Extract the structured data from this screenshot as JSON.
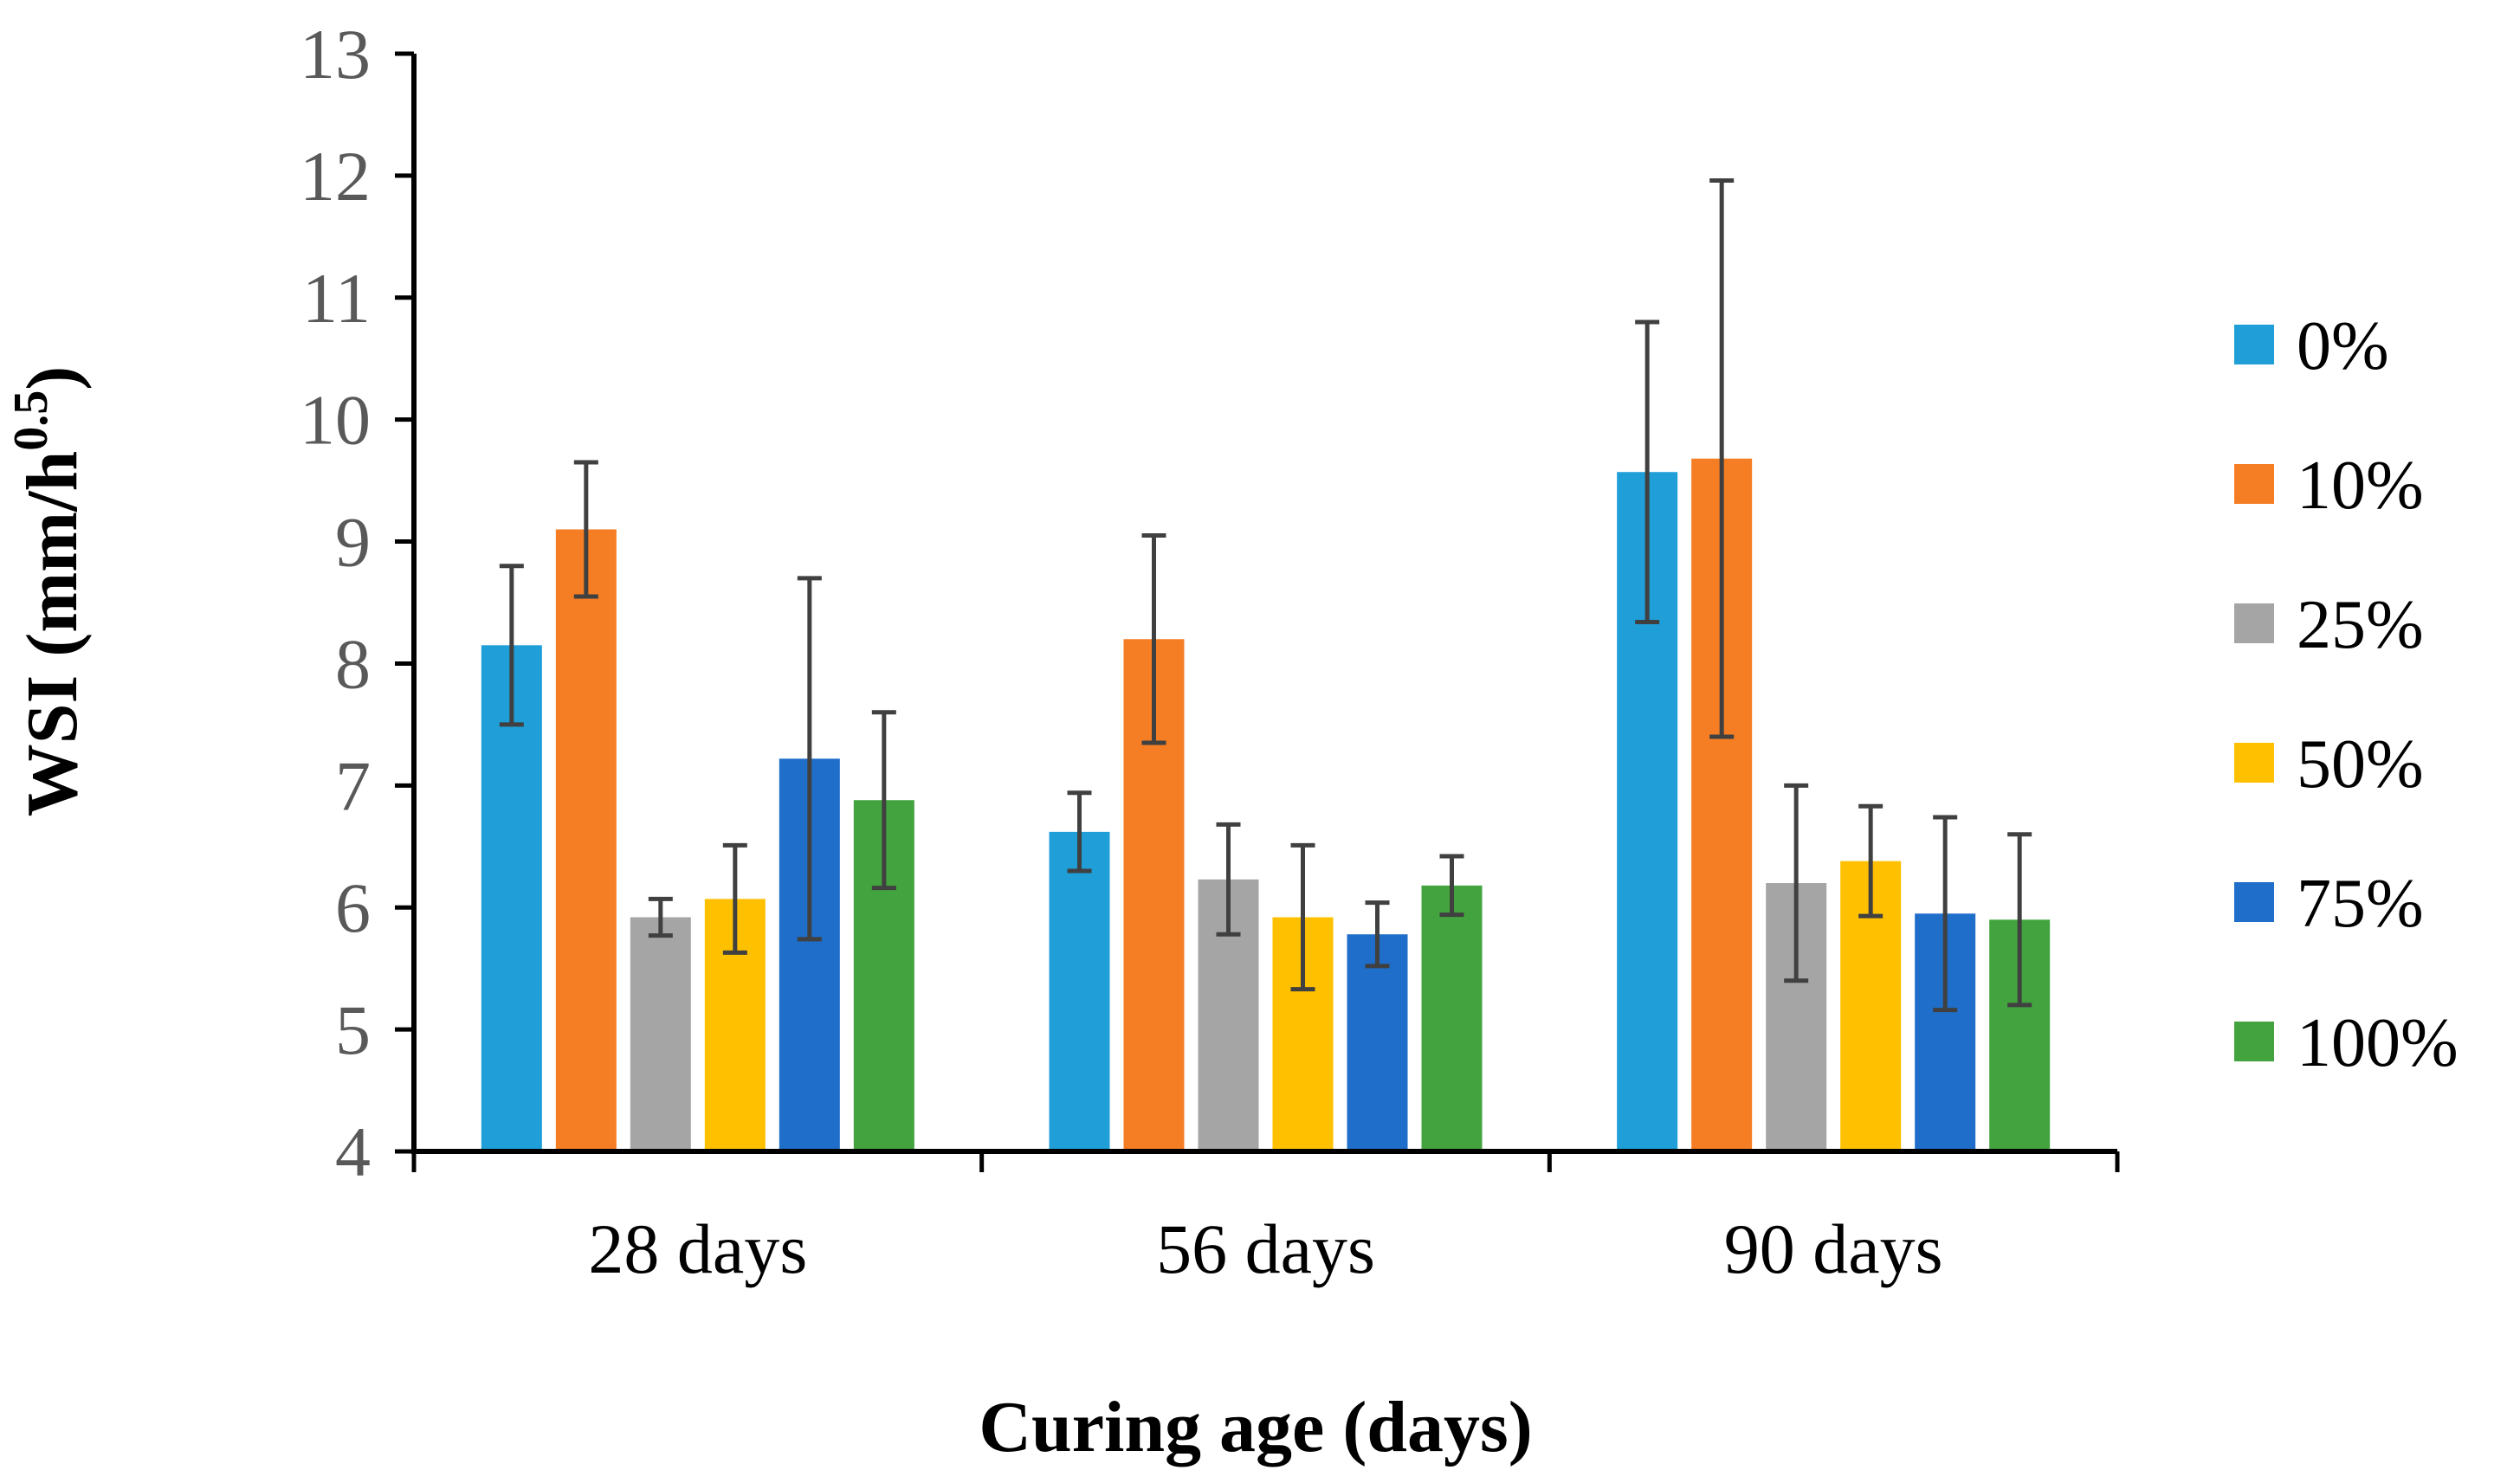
{
  "chart_data": {
    "type": "bar",
    "title": "",
    "xlabel": "Curing age (days)",
    "ylabel": "WSI (mm/h",
    "ylabel_superscript": "0.5",
    "ylabel_close": ")",
    "ylim": [
      4,
      13
    ],
    "yticks": [
      4,
      5,
      6,
      7,
      8,
      9,
      10,
      11,
      12,
      13
    ],
    "ytick_labels": [
      "4",
      "5",
      "6",
      "7",
      "8",
      "9",
      "10",
      "11",
      "12",
      "13"
    ],
    "categories": [
      "28 days",
      "56 days",
      "90 days"
    ],
    "grid": false,
    "legend_position": "right",
    "series": [
      {
        "name": "0%",
        "color": "#1F9ED8",
        "values": [
          8.15,
          6.62,
          9.57
        ],
        "errors": [
          0.65,
          0.32,
          1.23
        ]
      },
      {
        "name": "10%",
        "color": "#F57E25",
        "values": [
          9.1,
          8.2,
          9.68
        ],
        "errors": [
          0.55,
          0.85,
          2.28
        ]
      },
      {
        "name": "25%",
        "color": "#A5A5A5",
        "values": [
          5.92,
          6.23,
          6.2
        ],
        "errors": [
          0.15,
          0.45,
          0.8
        ]
      },
      {
        "name": "50%",
        "color": "#FFC000",
        "values": [
          6.07,
          5.92,
          6.38
        ],
        "errors": [
          0.44,
          0.59,
          0.45
        ]
      },
      {
        "name": "75%",
        "color": "#1F6EC9",
        "values": [
          7.22,
          5.78,
          5.95
        ],
        "errors": [
          1.48,
          0.26,
          0.79
        ]
      },
      {
        "name": "100%",
        "color": "#43A43F",
        "values": [
          6.88,
          6.18,
          5.9
        ],
        "errors": [
          0.72,
          0.24,
          0.7
        ]
      }
    ]
  }
}
